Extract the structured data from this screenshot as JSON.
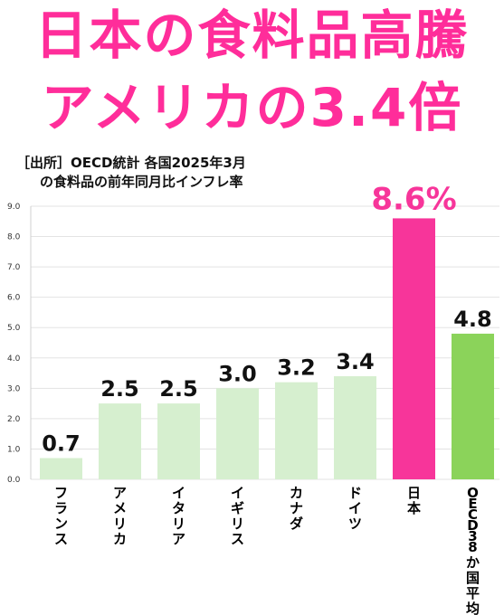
{
  "headline": {
    "line1": "日本の食料品高騰",
    "line2": "アメリカの3.4倍"
  },
  "source": {
    "line1": "［出所］OECD統計 各国2025年3月",
    "line2": "の食料品の前年同月比インフレ率"
  },
  "colors": {
    "headline": "#ff2d9a",
    "bar_default": "#d6efcf",
    "bar_japan": "#f7359a",
    "bar_oecd": "#8bd35a"
  },
  "chart_data": {
    "type": "bar",
    "title": "",
    "xlabel": "",
    "ylabel": "",
    "ylim": [
      0,
      9
    ],
    "y_ticks": [
      "0.0",
      "1.0",
      "2.0",
      "3.0",
      "4.0",
      "5.0",
      "6.0",
      "7.0",
      "8.0",
      "9.0"
    ],
    "grid": true,
    "categories": [
      "フランス",
      "アメリカ",
      "イタリア",
      "イギリス",
      "カナダ",
      "ドイツ",
      "日本",
      "OECD38か国平均"
    ],
    "values": [
      0.7,
      2.5,
      2.5,
      3.0,
      3.2,
      3.4,
      8.6,
      4.8
    ],
    "value_labels": [
      "0.7",
      "2.5",
      "2.5",
      "3.0",
      "3.2",
      "3.4",
      "8.6%",
      "4.8"
    ]
  }
}
